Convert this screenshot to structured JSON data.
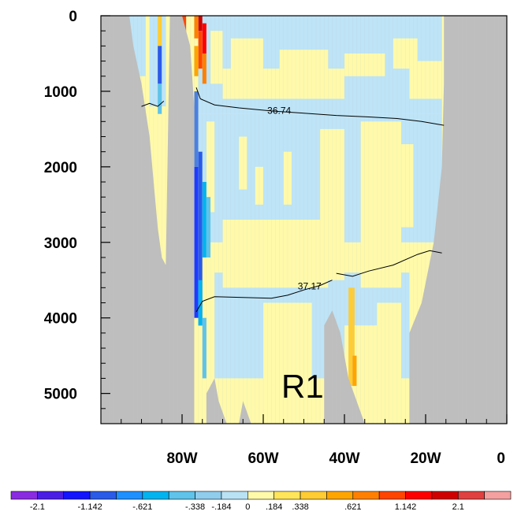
{
  "chart_data": {
    "type": "heatmap",
    "title": "",
    "xlabel": "",
    "ylabel": "",
    "panel_label": "R1",
    "x_range": [
      -100,
      0
    ],
    "y_range": [
      0,
      5400
    ],
    "y_reversed": true,
    "x_ticks": [
      {
        "value": -80,
        "label": "80W"
      },
      {
        "value": -60,
        "label": "60W"
      },
      {
        "value": -40,
        "label": "40W"
      },
      {
        "value": -20,
        "label": "20W"
      },
      {
        "value": 0,
        "label": "0"
      }
    ],
    "y_ticks": [
      {
        "value": 0,
        "label": "0"
      },
      {
        "value": 1000,
        "label": "1000"
      },
      {
        "value": 2000,
        "label": "2000"
      },
      {
        "value": 3000,
        "label": "3000"
      },
      {
        "value": 4000,
        "label": "4000"
      },
      {
        "value": 5000,
        "label": "5000"
      }
    ],
    "land_color": "#bebebe",
    "colorbar": {
      "labels": [
        "-2.1",
        "-1.142",
        "-.621",
        "-.338",
        "-.184",
        "0",
        ".184",
        ".338",
        ".621",
        "1.142",
        "2.1"
      ],
      "colors": [
        "#8a2be2",
        "#4b1ee6",
        "#1414ff",
        "#2a5ae8",
        "#1e90ff",
        "#00b4f0",
        "#5fc3ea",
        "#90ccec",
        "#b9e2f5",
        "#fffaaa",
        "#ffe55a",
        "#ffcc33",
        "#ffa500",
        "#ff8000",
        "#ff4500",
        "#ff0000",
        "#d00000",
        "#e04040",
        "#f4a0a0"
      ]
    },
    "contours": [
      {
        "label": "36.74",
        "points": [
          [
            -76.5,
            950
          ],
          [
            -75.5,
            1100
          ],
          [
            -72,
            1180
          ],
          [
            -66,
            1220
          ],
          [
            -58,
            1260
          ],
          [
            -50,
            1290
          ],
          [
            -42,
            1320
          ],
          [
            -34,
            1340
          ],
          [
            -27,
            1360
          ],
          [
            -21,
            1400
          ],
          [
            -15.5,
            1450
          ]
        ]
      },
      {
        "label": "37.17",
        "points": [
          [
            -76.5,
            3920
          ],
          [
            -75,
            3780
          ],
          [
            -72,
            3720
          ],
          [
            -65,
            3730
          ],
          [
            -58,
            3740
          ],
          [
            -54,
            3700
          ],
          [
            -50,
            3630
          ],
          [
            -46,
            3570
          ],
          [
            -43,
            3500
          ]
        ]
      },
      {
        "label": "",
        "points": [
          [
            -42,
            3410
          ],
          [
            -38,
            3450
          ],
          [
            -34,
            3380
          ],
          [
            -28,
            3300
          ],
          [
            -22,
            3160
          ],
          [
            -19,
            3110
          ],
          [
            -16,
            3140
          ]
        ]
      },
      {
        "label": "",
        "points": [
          [
            -90,
            1200
          ],
          [
            -88,
            1160
          ],
          [
            -86,
            1200
          ],
          [
            -84.5,
            1130
          ]
        ]
      }
    ],
    "land_masks": {
      "left_shelf": [
        [
          -100,
          0
        ],
        [
          -93,
          0
        ],
        [
          -92,
          400
        ],
        [
          -90,
          900
        ],
        [
          -88,
          1600
        ],
        [
          -87,
          2200
        ],
        [
          -86,
          2800
        ],
        [
          -85,
          3200
        ],
        [
          -84,
          3300
        ],
        [
          -83,
          0
        ],
        [
          -80,
          0
        ],
        [
          -78,
          400
        ],
        [
          -77,
          1200
        ],
        [
          -77,
          5400
        ],
        [
          -100,
          5400
        ]
      ],
      "right_shelf": [
        [
          -15.5,
          0
        ],
        [
          0,
          0
        ],
        [
          0,
          5400
        ],
        [
          -24,
          5400
        ],
        [
          -24,
          4200
        ],
        [
          -21,
          3800
        ],
        [
          -18,
          3000
        ],
        [
          -16,
          2000
        ],
        [
          -15.5,
          900
        ]
      ],
      "ridge": [
        [
          -45,
          5400
        ],
        [
          -45,
          4100
        ],
        [
          -43,
          3900
        ],
        [
          -41,
          4200
        ],
        [
          -39,
          4800
        ],
        [
          -35,
          5400
        ]
      ],
      "seamount_a": [
        [
          -74,
          5400
        ],
        [
          -74,
          5000
        ],
        [
          -72,
          4800
        ],
        [
          -71,
          5100
        ],
        [
          -69,
          5400
        ]
      ],
      "seamount_b": [
        [
          -66,
          5400
        ],
        [
          -65,
          5100
        ],
        [
          -63,
          5400
        ]
      ]
    }
  }
}
